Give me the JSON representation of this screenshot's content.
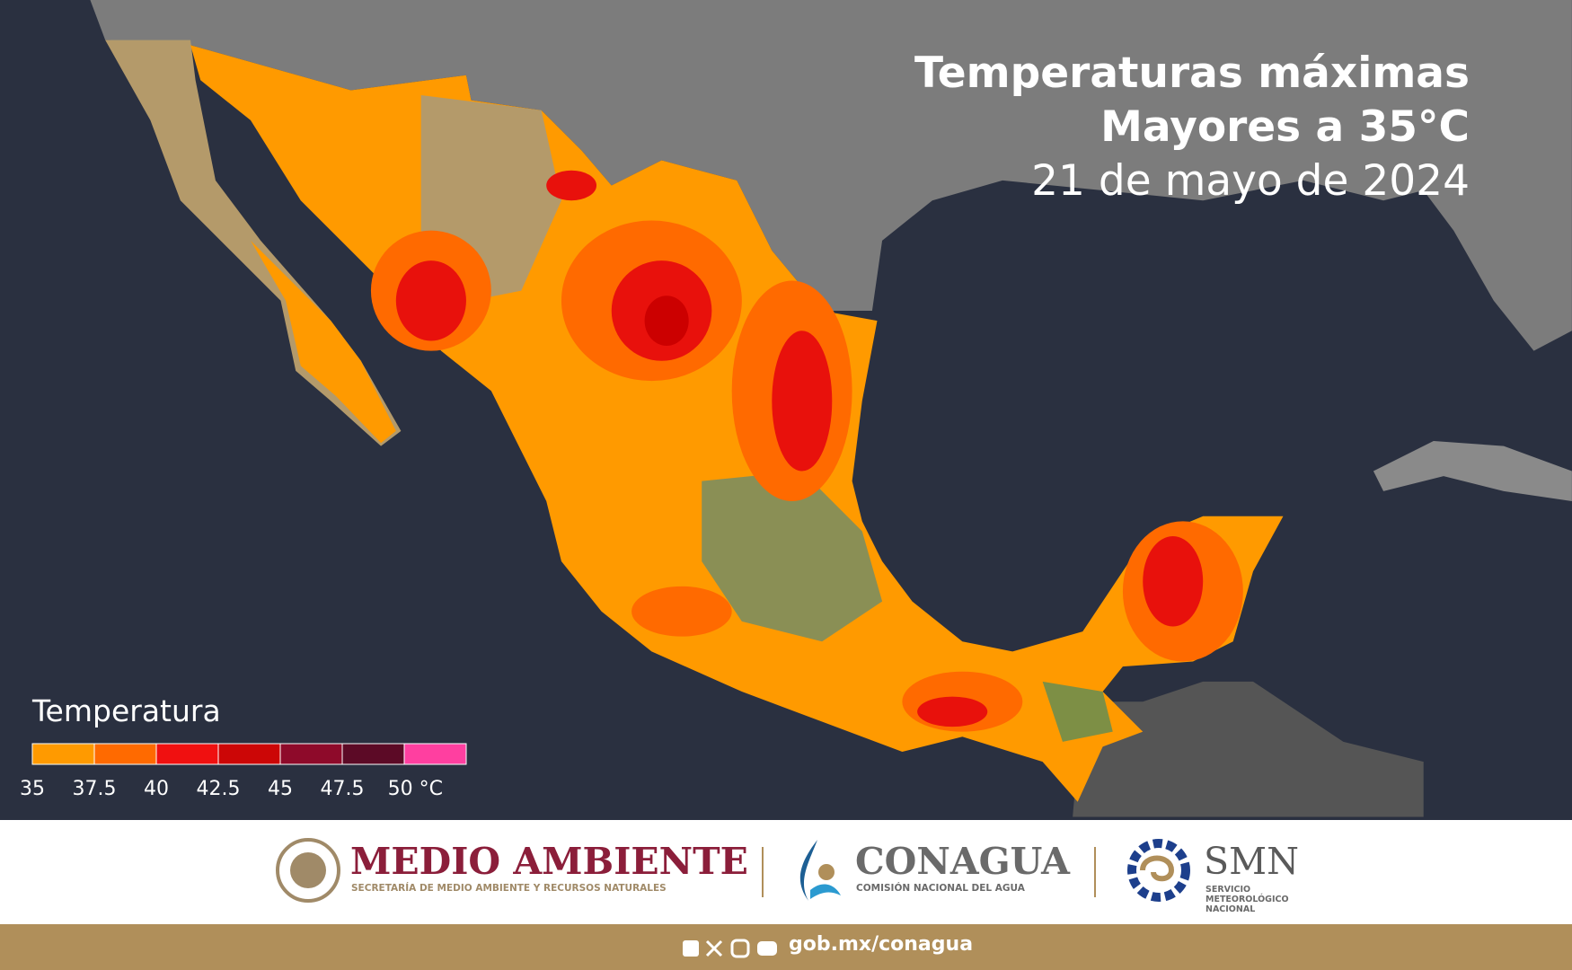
{
  "title": {
    "line1": "Temperaturas máximas",
    "line2": "Mayores a 35°C",
    "date": "21 de mayo de 2024"
  },
  "legend": {
    "title": "Temperatura",
    "colors": [
      "#ff9a00",
      "#ff6a00",
      "#f01010",
      "#cc0606",
      "#8e0a2a",
      "#5c0a26",
      "#ff3fa0"
    ],
    "labels": [
      "35",
      "37.5",
      "40",
      "42.5",
      "45",
      "47.5",
      "50 °C"
    ]
  },
  "footer": {
    "semarnat": {
      "name": "MEDIO AMBIENTE",
      "subtitle": "SECRETARÍA DE MEDIO AMBIENTE Y RECURSOS NATURALES"
    },
    "conagua": {
      "name": "CONAGUA",
      "subtitle": "COMISIÓN NACIONAL DEL AGUA"
    },
    "smn": {
      "name": "SMN",
      "subtitle": [
        "SERVICIO",
        "METEOROLÓGICO",
        "NACIONAL"
      ]
    },
    "website": "gob.mx/conagua"
  }
}
